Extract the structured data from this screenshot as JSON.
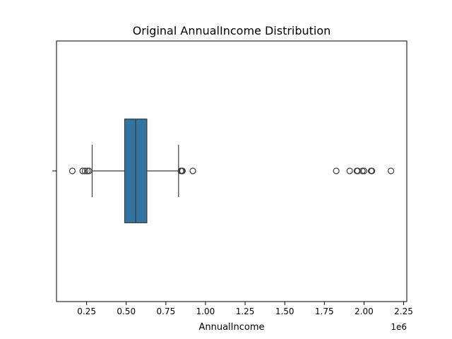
{
  "chart_data": {
    "type": "box",
    "title": "Original AnnualIncome Distribution",
    "xlabel": "AnnualIncome",
    "ylabel": "",
    "x_scale_label": "1e6",
    "xlim": [
      0.06,
      2.27
    ],
    "xticks": [
      0.25,
      0.5,
      0.75,
      1.0,
      1.25,
      1.5,
      1.75,
      2.0,
      2.25
    ],
    "xtick_labels": [
      "0.25",
      "0.50",
      "0.75",
      "1.00",
      "1.25",
      "1.50",
      "1.75",
      "2.00",
      "2.25"
    ],
    "box": {
      "whisker_low": 0.285,
      "q1": 0.49,
      "median": 0.56,
      "q3": 0.63,
      "whisker_high": 0.83
    },
    "outliers": [
      0.16,
      0.225,
      0.24,
      0.255,
      0.265,
      0.845,
      0.85,
      0.855,
      0.92,
      1.825,
      1.91,
      1.955,
      1.96,
      1.99,
      2.0,
      2.045,
      2.05,
      2.17
    ],
    "box_color": "#3274a1",
    "line_color": "#3c3c3c",
    "grid": false
  }
}
